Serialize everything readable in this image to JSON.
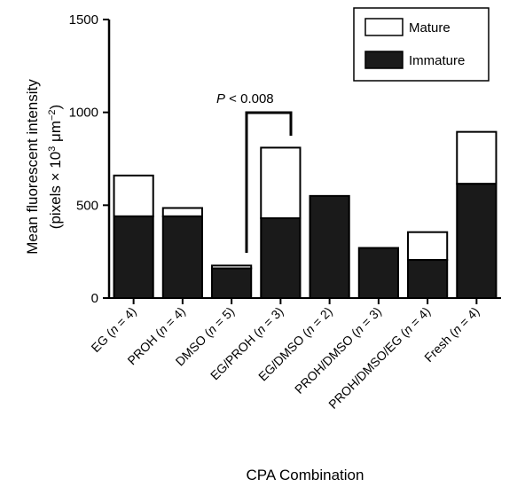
{
  "chart_data": {
    "type": "bar",
    "stacked": true,
    "title": "",
    "xlabel": "CPA Combination",
    "ylabel_line1": "Mean fluorescent intensity",
    "ylabel_line2_pre": "(pixels × 10",
    "ylabel_exp": "3",
    "ylabel_mid": " μm",
    "ylabel_exp2": "−2",
    "ylabel_end": ")",
    "ylim": [
      0,
      1500
    ],
    "yticks": [
      0,
      500,
      1000,
      1500
    ],
    "categories": [
      "EG (n = 4)",
      "PROH (n = 4)",
      "DMSO (n = 5)",
      "EG/PROH (n = 3)",
      "EG/DMSO (n = 2)",
      "PROH/DMSO (n = 3)",
      "PROH/DMSO/EG (n = 4)",
      "Fresh (n = 4)"
    ],
    "series": [
      {
        "name": "Immature",
        "color": "#1a1a1a",
        "values": [
          440,
          440,
          160,
          430,
          550,
          270,
          205,
          615
        ]
      },
      {
        "name": "Mature",
        "color": "#ffffff",
        "values": [
          220,
          45,
          15,
          380,
          0,
          0,
          150,
          280
        ]
      }
    ],
    "legend": {
      "placement": "top-right",
      "entries": [
        "Mature",
        "Immature"
      ]
    },
    "annotation": {
      "text_italic": "P",
      "text_rest": " < 0.008",
      "between": [
        "DMSO (n = 5)",
        "EG/PROH (n = 3)"
      ]
    }
  }
}
